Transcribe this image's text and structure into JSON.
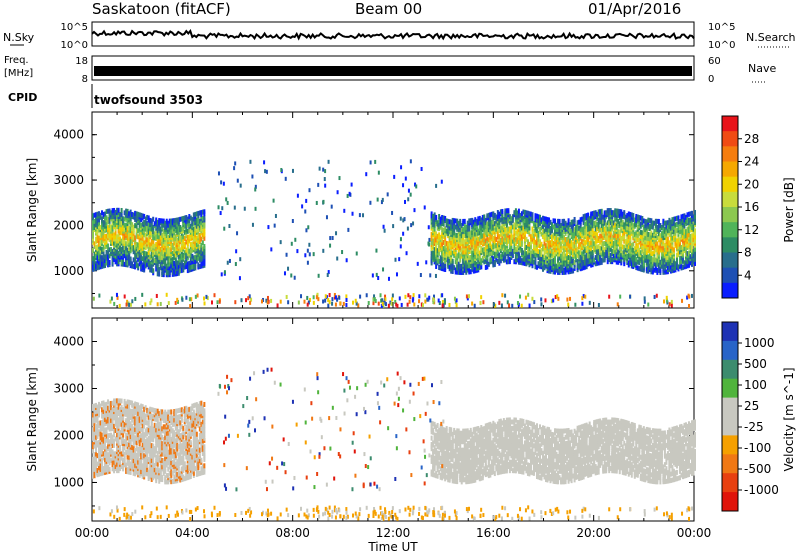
{
  "header": {
    "station": "Saskatoon (fitACF)",
    "beam": "Beam 00",
    "date": "01/Apr/2016"
  },
  "labels": {
    "nsky": "N.Sky",
    "nsearch": "N.Search",
    "freq_line1": "Freq.",
    "freq_unit": "[MHz]",
    "nave": "Nave",
    "cpid": "CPID",
    "cpid_value": "twofsound 3503",
    "nsky_ticks": [
      "10^5",
      "10^0"
    ],
    "nsearch_ticks": [
      "10^5",
      "10^0"
    ],
    "freq_ticks": [
      "18",
      "8"
    ],
    "nave_ticks": [
      "60",
      "0"
    ]
  },
  "chart_data": [
    {
      "type": "heatmap",
      "panel": "power",
      "ylabel": "Slant Range [km]",
      "xlim": [
        0,
        24
      ],
      "ylim": [
        180,
        4500
      ],
      "yticks": [
        "1000",
        "2000",
        "3000",
        "4000"
      ],
      "colorbar": {
        "label": "Power [dB]",
        "ticks": [
          "28",
          "24",
          "20",
          "16",
          "12",
          "8",
          "4"
        ],
        "colors": [
          "#e8141b",
          "#f04b14",
          "#f57d0e",
          "#f5a800",
          "#f0d200",
          "#c8dc3c",
          "#8cc850",
          "#50b45a",
          "#2d8c64",
          "#286e8c",
          "#1e50b4",
          "#0a1eff"
        ]
      },
      "regions": [
        {
          "t0": 0.0,
          "t1": 4.5,
          "ranges": [
            [
              1100,
              2200
            ],
            [
              1000,
              1050
            ]
          ]
        },
        {
          "t0": 13.5,
          "t1": 24.0,
          "ranges": [
            [
              1050,
              2200
            ]
          ]
        }
      ]
    },
    {
      "type": "heatmap",
      "panel": "velocity",
      "ylabel": "Slant Range [km]",
      "xlabel": "Time UT",
      "xlim": [
        0,
        24
      ],
      "ylim": [
        180,
        4500
      ],
      "yticks": [
        "1000",
        "2000",
        "3000",
        "4000"
      ],
      "xticks": [
        "00:00",
        "04:00",
        "08:00",
        "12:00",
        "16:00",
        "20:00",
        "00:00"
      ],
      "colorbar": {
        "label": "Velocity [m s^-1]",
        "ticks": [
          "1000",
          "500",
          "100",
          "25",
          "-25",
          "-100",
          "-500",
          "-1000"
        ],
        "colors": [
          "#1e32b4",
          "#2864c8",
          "#3c8c6e",
          "#50b43c",
          "#c8c8c0",
          "#c8c8c0",
          "#f5a000",
          "#f07814",
          "#e84010",
          "#e0140a"
        ]
      },
      "regions": [
        {
          "t0": 0.0,
          "t1": 4.5,
          "ranges": [
            [
              1100,
              2600
            ]
          ]
        },
        {
          "t0": 13.5,
          "t1": 24.0,
          "ranges": [
            [
              1100,
              2200
            ]
          ]
        }
      ]
    }
  ]
}
